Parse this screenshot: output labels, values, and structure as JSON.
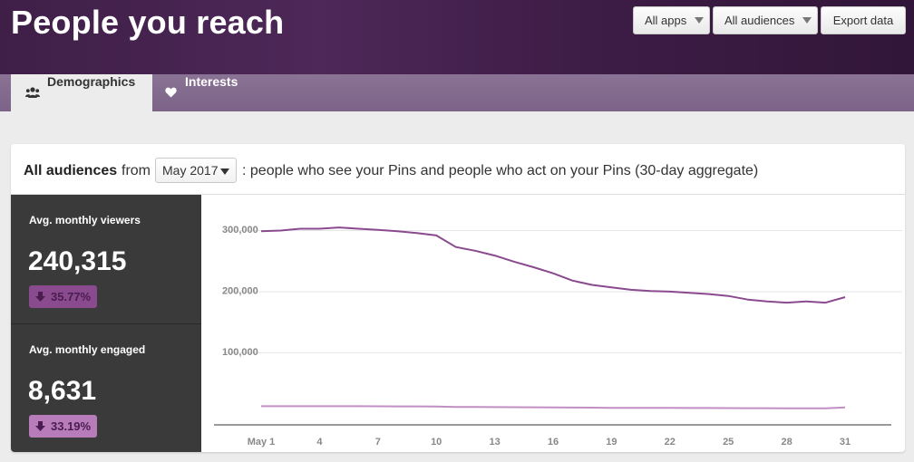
{
  "header": {
    "title": "People you reach",
    "apps_button": "All apps",
    "audiences_button": "All audiences",
    "export_button": "Export data"
  },
  "tabs": [
    {
      "label": "Demographics",
      "icon": "users-icon",
      "active": true
    },
    {
      "label": "Interests",
      "icon": "heart-icon",
      "active": false
    }
  ],
  "card": {
    "audience": "All audiences",
    "from_text": "from",
    "month_select": "May 2017",
    "description": ": people who see your Pins and people who act on your Pins (30-day aggregate)"
  },
  "metrics": [
    {
      "label": "Avg. monthly viewers",
      "value": "240,315",
      "change": "35.77%",
      "direction": "down",
      "color": "#8a4a8e"
    },
    {
      "label": "Avg. monthly engaged",
      "value": "8,631",
      "change": "33.19%",
      "direction": "down",
      "color": "#b87cba"
    }
  ],
  "colors": {
    "header_bg": "#44234d",
    "viewers_line": "#8a4a8e",
    "engaged_line": "#c28fc4",
    "side_panel": "#3a3a3a"
  },
  "chart_data": {
    "type": "line",
    "x": [
      1,
      2,
      3,
      4,
      5,
      6,
      7,
      8,
      9,
      10,
      11,
      12,
      13,
      14,
      15,
      16,
      17,
      18,
      19,
      20,
      21,
      22,
      23,
      24,
      25,
      26,
      27,
      28,
      29,
      30,
      31
    ],
    "x_tick_labels": [
      "May 1",
      "4",
      "7",
      "10",
      "13",
      "16",
      "19",
      "22",
      "25",
      "28",
      "31"
    ],
    "x_tick_values": [
      1,
      4,
      7,
      10,
      13,
      16,
      19,
      22,
      25,
      28,
      31
    ],
    "y_tick_labels": [
      "300,000",
      "200,000",
      "100,000"
    ],
    "y_tick_values": [
      300000,
      200000,
      100000
    ],
    "ylim": [
      -18000,
      320000
    ],
    "grid": true,
    "series": [
      {
        "name": "Avg. monthly viewers",
        "color": "#8a4a8e",
        "values": [
          299000,
          300000,
          303000,
          303000,
          305000,
          303000,
          301000,
          299000,
          296000,
          292000,
          273000,
          267000,
          259000,
          249000,
          240000,
          230000,
          218000,
          211000,
          207000,
          203000,
          201000,
          200000,
          198000,
          196000,
          193000,
          187000,
          184000,
          182000,
          184000,
          182000,
          191000
        ]
      },
      {
        "name": "Avg. monthly engaged",
        "color": "#c28fc4",
        "values": [
          12500,
          12500,
          12600,
          12600,
          12600,
          12500,
          12400,
          12300,
          12200,
          12000,
          11400,
          11200,
          11100,
          10900,
          10700,
          10500,
          10300,
          10100,
          9900,
          9800,
          9800,
          9700,
          9600,
          9500,
          9400,
          9300,
          9300,
          9200,
          9200,
          9100,
          10600
        ]
      }
    ]
  }
}
